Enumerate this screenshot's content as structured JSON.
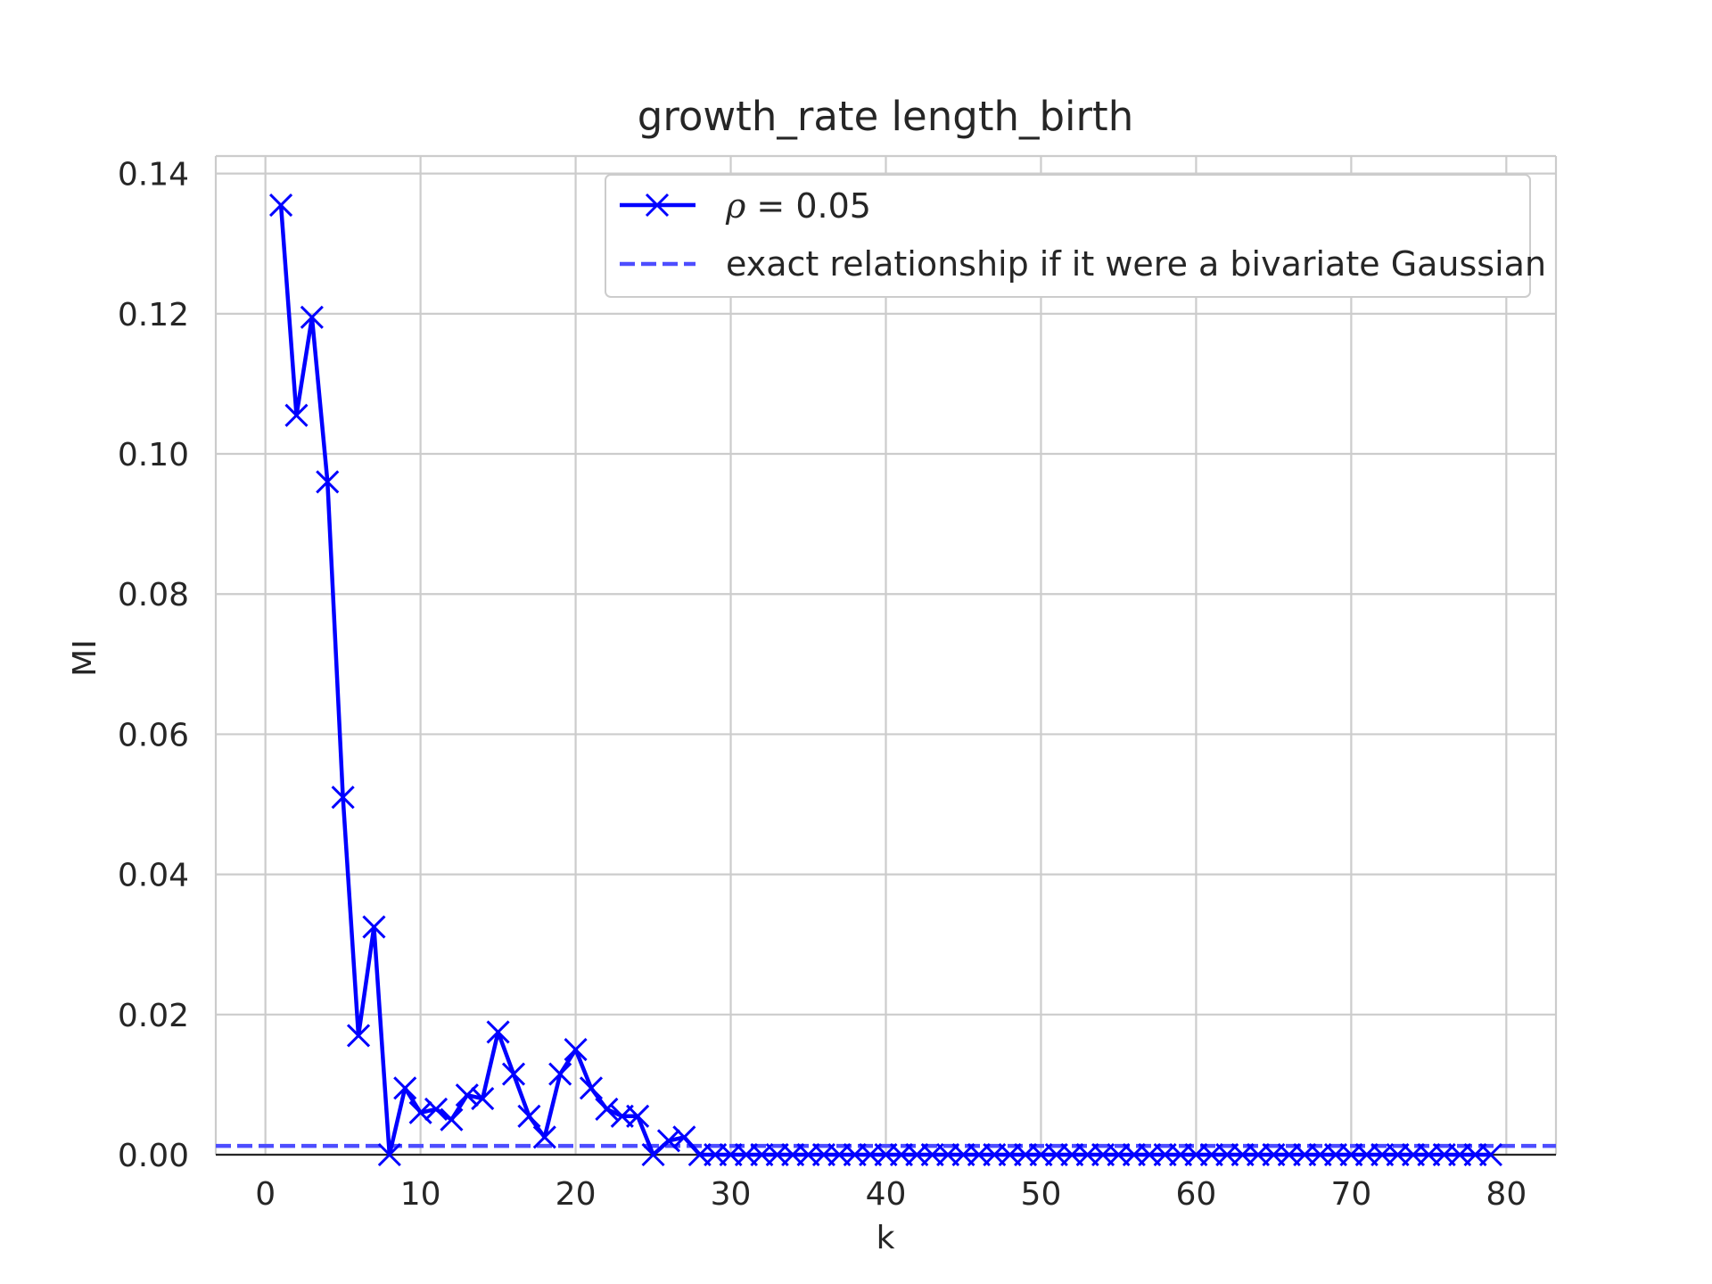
{
  "chart_data": {
    "type": "line",
    "title": "growth_rate length_birth",
    "xlabel": "k",
    "ylabel": "MI",
    "xlim": [
      -3.2,
      83.2
    ],
    "ylim": [
      0,
      0.1425
    ],
    "xticks": [
      0,
      10,
      20,
      30,
      40,
      50,
      60,
      70,
      80
    ],
    "yticks": [
      0.0,
      0.02,
      0.04,
      0.06,
      0.08,
      0.1,
      0.12,
      0.14
    ],
    "ytick_labels": [
      "0.00",
      "0.02",
      "0.04",
      "0.06",
      "0.08",
      "0.10",
      "0.12",
      "0.14"
    ],
    "grid": true,
    "legend_position": "top-right",
    "series": [
      {
        "name": "ρ = 0.05",
        "legend_symbol": "ρ",
        "legend_expr": " = 0.05",
        "color": "#0000ff",
        "marker": "x",
        "linestyle": "solid",
        "x": [
          1,
          2,
          3,
          4,
          5,
          6,
          7,
          8,
          9,
          10,
          11,
          12,
          13,
          14,
          15,
          16,
          17,
          18,
          19,
          20,
          21,
          22,
          23,
          24,
          25,
          26,
          27,
          28,
          29,
          30,
          31,
          32,
          33,
          34,
          35,
          36,
          37,
          38,
          39,
          40,
          41,
          42,
          43,
          44,
          45,
          46,
          47,
          48,
          49,
          50,
          51,
          52,
          53,
          54,
          55,
          56,
          57,
          58,
          59,
          60,
          61,
          62,
          63,
          64,
          65,
          66,
          67,
          68,
          69,
          70,
          71,
          72,
          73,
          74,
          75,
          76,
          77,
          78,
          79
        ],
        "y": [
          0.1355,
          0.1055,
          0.1195,
          0.096,
          0.051,
          0.017,
          0.0325,
          0.0,
          0.0095,
          0.006,
          0.0065,
          0.005,
          0.0085,
          0.008,
          0.0175,
          0.0115,
          0.0055,
          0.0025,
          0.0115,
          0.015,
          0.0095,
          0.0065,
          0.0055,
          0.0055,
          0.0,
          0.002,
          0.0025,
          0.0,
          0.0,
          0.0,
          0.0,
          0.0,
          0.0,
          0.0,
          0.0,
          0.0,
          0.0,
          0.0,
          0.0,
          0.0,
          0.0,
          0.0,
          0.0,
          0.0,
          0.0,
          0.0,
          0.0,
          0.0,
          0.0,
          0.0,
          0.0,
          0.0,
          0.0,
          0.0,
          0.0,
          0.0,
          0.0,
          0.0,
          0.0,
          0.0,
          0.0,
          0.0,
          0.0,
          0.0,
          0.0,
          0.0,
          0.0,
          0.0,
          0.0,
          0.0,
          0.0,
          0.0,
          0.0,
          0.0,
          0.0,
          0.0,
          0.0,
          0.0,
          0.0
        ]
      },
      {
        "name": "exact relationship if it were a bivariate Gaussian",
        "color": "#4d4dff",
        "linestyle": "dashed",
        "type": "hline",
        "y": 0.00125
      }
    ]
  }
}
